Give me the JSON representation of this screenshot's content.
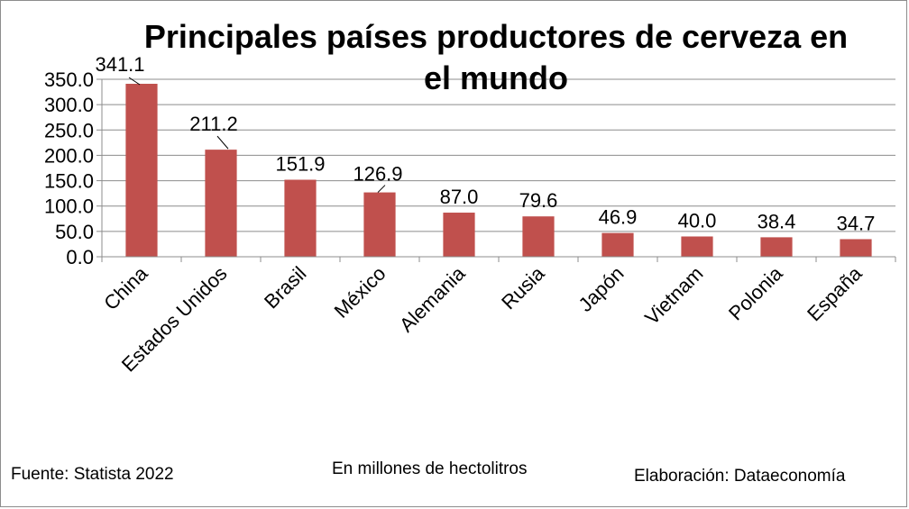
{
  "chart_data": {
    "type": "bar",
    "title": "Principales países productores de cerveza en el mundo",
    "categories": [
      "China",
      "Estados Unidos",
      "Brasil",
      "México",
      "Alemania",
      "Rusia",
      "Japón",
      "Vietnam",
      "Polonia",
      "España"
    ],
    "values": [
      341.1,
      211.2,
      151.9,
      126.9,
      87.0,
      79.6,
      46.9,
      40.0,
      38.4,
      34.7
    ],
    "value_labels": [
      "341.1",
      "211.2",
      "151.9",
      "126.9",
      "87.0",
      "79.6",
      "46.9",
      "40.0",
      "38.4",
      "34.7"
    ],
    "ylim": [
      0,
      350
    ],
    "yticks": [
      "0.0",
      "50.0",
      "100.0",
      "150.0",
      "200.0",
      "250.0",
      "300.0",
      "350.0"
    ],
    "grid": true,
    "legend": "none",
    "bar_color": "#c0504d"
  },
  "footer": {
    "source": "Fuente:  Statista 2022",
    "unit": "En millones de hectolitros",
    "credit": "Elaboración: Dataeconomía"
  }
}
